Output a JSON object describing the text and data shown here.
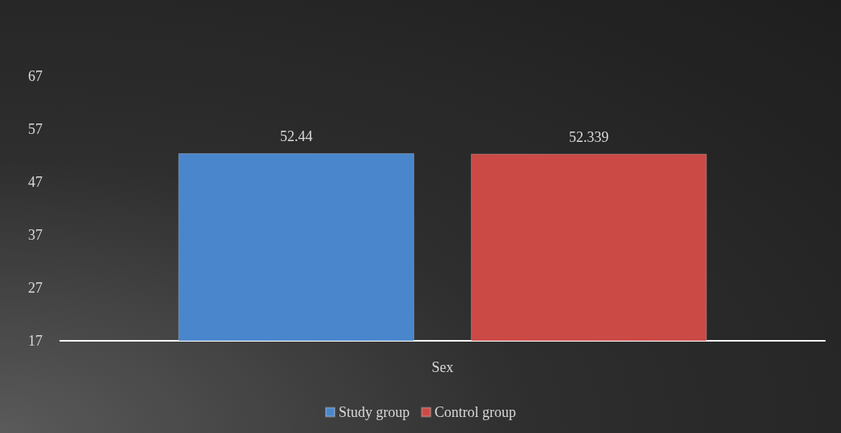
{
  "chart_data": {
    "type": "bar",
    "categories": [
      "Sex"
    ],
    "series": [
      {
        "name": "Study group",
        "color": "#4a86cc",
        "values": [
          52.44
        ]
      },
      {
        "name": "Control group",
        "color": "#cc4a45",
        "values": [
          52.339
        ]
      }
    ],
    "ylim": [
      17,
      67
    ],
    "yticks": [
      17,
      27,
      37,
      47,
      57,
      67
    ],
    "grid": false,
    "legend": "bottom",
    "data_labels": true
  }
}
